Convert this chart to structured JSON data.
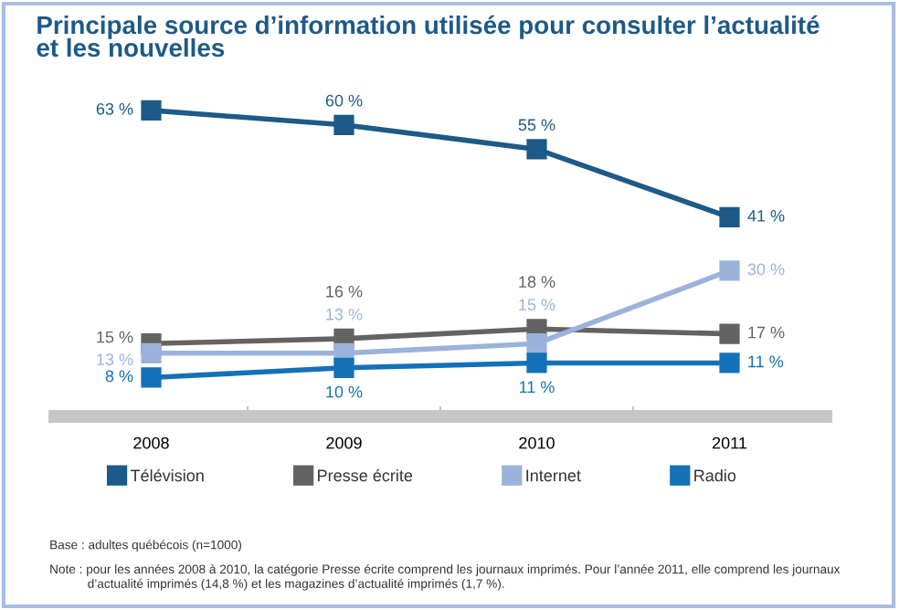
{
  "chart_data": {
    "type": "line",
    "title": "Principale source d’information utilisée pour consulter l’actualité\net les nouvelles",
    "categories": [
      "2008",
      "2009",
      "2010",
      "2011"
    ],
    "series": [
      {
        "name": "Télévision",
        "color": "#1d5a87",
        "values": [
          63,
          60,
          55,
          41
        ],
        "value_labels": [
          "63 %",
          "60 %",
          "55 %",
          "41 %"
        ]
      },
      {
        "name": "Presse écrite",
        "color": "#636363",
        "values": [
          15,
          16,
          18,
          17
        ],
        "value_labels": [
          "15 %",
          "16 %",
          "18 %",
          "17 %"
        ]
      },
      {
        "name": "Internet",
        "color": "#9bb3da",
        "values": [
          13,
          13,
          15,
          30
        ],
        "value_labels": [
          "13 %",
          "13 %",
          "15 %",
          "30 %"
        ]
      },
      {
        "name": "Radio",
        "color": "#1471b8",
        "values": [
          8,
          10,
          11,
          11
        ],
        "value_labels": [
          "8 %",
          "10 %",
          "11 %",
          "11 %"
        ]
      }
    ],
    "marker": "square",
    "line_style": "solid",
    "grid": false,
    "legend": "bottom",
    "annotations": [
      "Base : adultes québécois (n=1000)",
      "Note : pour les années 2008 à 2010, la catégorie Presse écrite comprend les journaux imprimés. Pour l’année 2011, elle comprend les journaux\n           d’actualité imprimés (14,8 %) et les magazines d’actualité imprimés (1,7 %)."
    ]
  }
}
